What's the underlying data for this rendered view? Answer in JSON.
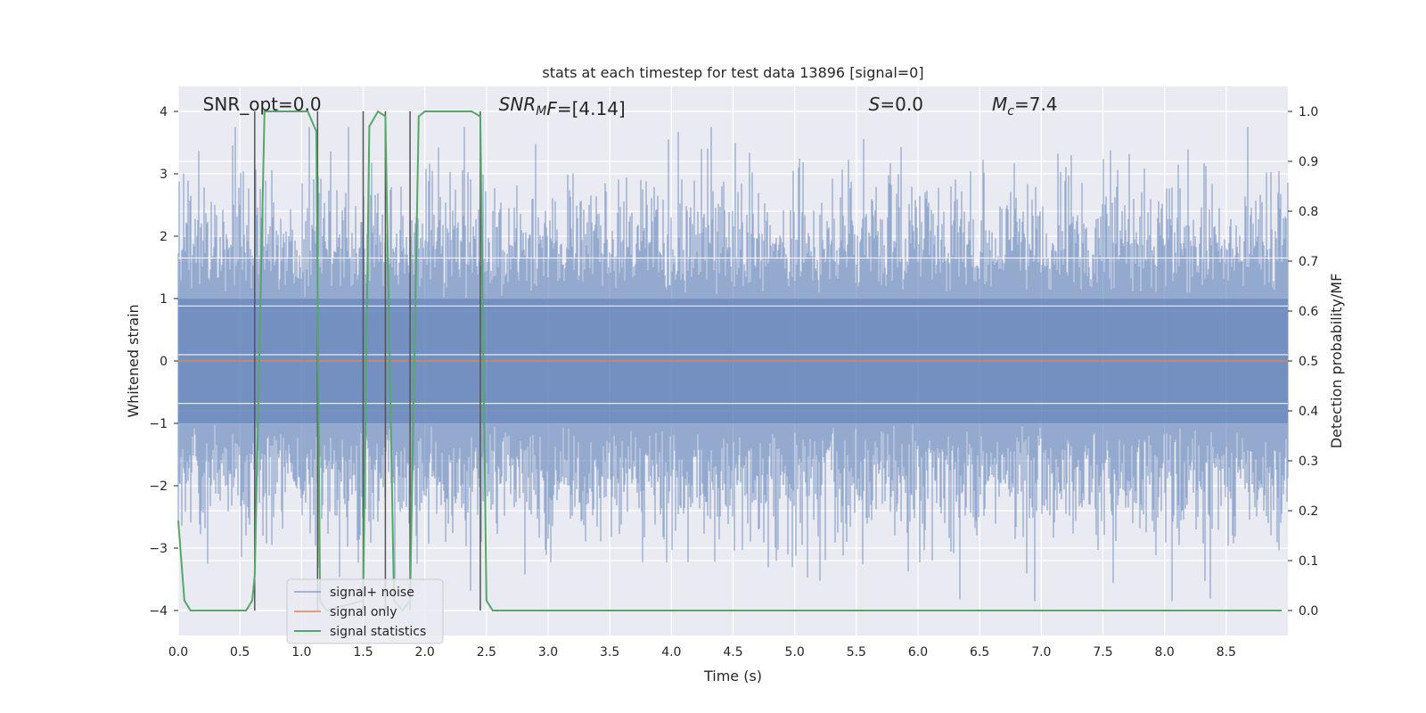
{
  "chart_data": {
    "type": "line",
    "title": "stats at each timestep for test data 13896 [signal=0]",
    "xlabel": "Time (s)",
    "ylabel": "Whitened strain",
    "ylabel_right": "Detection probability/MF",
    "xlim": [
      0.0,
      9.0
    ],
    "ylim": [
      -4.4,
      4.4
    ],
    "ylim_right": [
      -0.05,
      1.05
    ],
    "x_ticks": [
      "0.0",
      "0.5",
      "1.0",
      "1.5",
      "2.0",
      "2.5",
      "3.0",
      "3.5",
      "4.0",
      "4.5",
      "5.0",
      "5.5",
      "6.0",
      "6.5",
      "7.0",
      "7.5",
      "8.0",
      "8.5"
    ],
    "y_ticks": [
      "4",
      "3",
      "2",
      "1",
      "0",
      "−1",
      "−2",
      "−3",
      "−4"
    ],
    "y_ticks_right": [
      "1.0",
      "0.9",
      "0.8",
      "0.7",
      "0.6",
      "0.5",
      "0.4",
      "0.3",
      "0.2",
      "0.1",
      "0.0"
    ],
    "grid": true,
    "legend_position": "lower-left",
    "annotations": [
      {
        "prefix": "SNR_opt",
        "sub": "",
        "suffix": "=0.0",
        "italic": false,
        "x": 0.2
      },
      {
        "prefix": "SNR",
        "sub": "M",
        "suffix": "F=[4.14]",
        "italic": true,
        "x": 2.6
      },
      {
        "prefix": "S",
        "sub": "",
        "suffix": "=0.0",
        "italic": true,
        "x": 5.6
      },
      {
        "prefix": "M",
        "sub": "c",
        "suffix": "=7.4",
        "italic": true,
        "x": 6.6
      }
    ],
    "series": [
      {
        "name": "signal+ noise",
        "color": "#4c72b0",
        "description_kind": "noise band",
        "band_x": [
          0.0,
          9.0
        ],
        "typical_range": [
          -2.0,
          2.0
        ],
        "max_value": 3.75,
        "min_value": -3.85
      },
      {
        "name": "signal only",
        "color": "#dd8452",
        "x": [
          0.0,
          9.0
        ],
        "y": [
          0.0,
          0.0
        ]
      },
      {
        "name": "signal statistics",
        "color": "#55a868",
        "axis": "right",
        "x": [
          0.0,
          0.05,
          0.1,
          0.15,
          0.55,
          0.6,
          0.62,
          0.7,
          0.75,
          1.05,
          1.12,
          1.15,
          1.2,
          1.5,
          1.55,
          1.62,
          1.68,
          1.75,
          1.82,
          1.88,
          1.95,
          2.0,
          2.38,
          2.45,
          2.5,
          2.55,
          8.95
        ],
        "y": [
          0.18,
          0.02,
          0.0,
          0.0,
          0.0,
          0.02,
          0.07,
          1.0,
          1.0,
          1.0,
          0.96,
          0.02,
          0.0,
          0.02,
          0.97,
          1.0,
          0.99,
          0.02,
          0.0,
          0.02,
          0.99,
          1.0,
          1.0,
          0.99,
          0.02,
          0.0,
          0.0
        ]
      }
    ],
    "vertical_markers": {
      "color": "#555555",
      "x": [
        0.62,
        1.13,
        1.5,
        1.68,
        1.88,
        2.45
      ],
      "y_range_right": [
        0.0,
        1.0
      ]
    }
  },
  "legend": {
    "items": [
      {
        "label": "signal+ noise",
        "color": "#4c72b0"
      },
      {
        "label": "signal only",
        "color": "#dd8452"
      },
      {
        "label": "signal statistics",
        "color": "#55a868"
      }
    ]
  },
  "colors": {
    "plot_background": "#eaeaf2",
    "grid": "#ffffff"
  }
}
